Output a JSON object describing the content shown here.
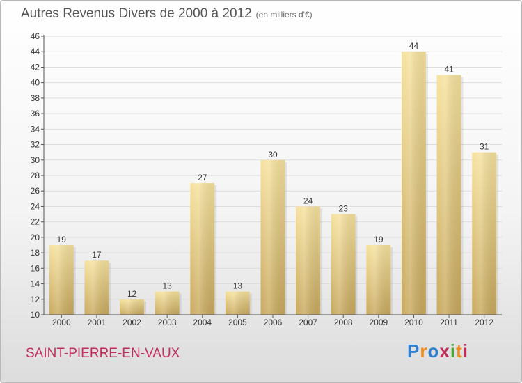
{
  "header": {
    "title": "Autres Revenus Divers de 2000 à 2012",
    "unit": "(en milliers d'€)"
  },
  "footer": {
    "commune": "SAINT-PIERRE-EN-VAUX",
    "brand": [
      "P",
      "r",
      "o",
      "x",
      "i",
      "t",
      "i"
    ]
  },
  "colors": {
    "bar_light": "#f6e29e",
    "bar_dark": "#c8a95e",
    "axis": "#555555",
    "grid": "#dddddd",
    "brand": [
      "#2f7fd0",
      "#f08a1c",
      "#2f7fd0",
      "#c0305e",
      "#49a83a",
      "#f08a1c",
      "#c0305e"
    ]
  },
  "chart_data": {
    "type": "bar",
    "title": "Autres Revenus Divers de 2000 à 2012",
    "categories": [
      "2000",
      "2001",
      "2002",
      "2003",
      "2004",
      "2005",
      "2006",
      "2007",
      "2008",
      "2009",
      "2010",
      "2011",
      "2012"
    ],
    "values": [
      19,
      17,
      12,
      13,
      27,
      13,
      30,
      24,
      23,
      19,
      44,
      41,
      31
    ],
    "ylim": [
      10,
      46
    ],
    "ytick_step": 2,
    "grid": true,
    "xlabel": "",
    "ylabel": ""
  }
}
